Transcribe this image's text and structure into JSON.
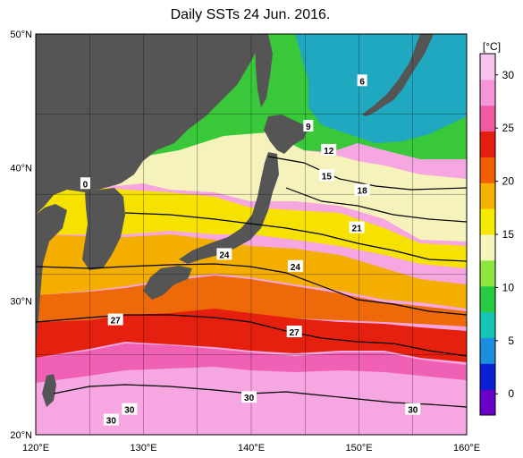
{
  "title": "Daily SSTs 24 Jun. 2016.",
  "lat_labels": [
    "50°N",
    "40°N",
    "30°N",
    "20°N"
  ],
  "lon_labels": [
    "120°E",
    "130°E",
    "140°E",
    "150°E",
    "160°E"
  ],
  "lat_range": [
    20,
    50
  ],
  "lon_range": [
    120,
    160
  ],
  "colorbar": {
    "unit": "[°C]",
    "range": [
      -2,
      32
    ],
    "ticks": [
      "30",
      "25",
      "20",
      "15",
      "10",
      "5",
      "0"
    ],
    "colors": [
      "#6a00c8",
      "#0a20d8",
      "#1c8ee0",
      "#16c4b4",
      "#28cc42",
      "#8ee640",
      "#f4f6bc",
      "#f6e800",
      "#f6b000",
      "#f06000",
      "#e61c10",
      "#f05aa0",
      "#f696d8",
      "#f8c4ee"
    ]
  },
  "contour_labels": [
    {
      "text": "6",
      "lon": 150.3,
      "lat": 46.5
    },
    {
      "text": "9",
      "lon": 145.3,
      "lat": 43.1
    },
    {
      "text": "12",
      "lon": 147.2,
      "lat": 41.3
    },
    {
      "text": "15",
      "lon": 147.0,
      "lat": 39.4
    },
    {
      "text": "18",
      "lon": 150.3,
      "lat": 38.3
    },
    {
      "text": "21",
      "lon": 149.8,
      "lat": 35.5
    },
    {
      "text": "24",
      "lon": 137.5,
      "lat": 33.5
    },
    {
      "text": "24",
      "lon": 144.1,
      "lat": 32.6
    },
    {
      "text": "27",
      "lon": 127.4,
      "lat": 28.6
    },
    {
      "text": "27",
      "lon": 144.0,
      "lat": 27.7
    },
    {
      "text": "30",
      "lon": 139.8,
      "lat": 22.8
    },
    {
      "text": "30",
      "lon": 128.7,
      "lat": 21.9
    },
    {
      "text": "30",
      "lon": 127.0,
      "lat": 21.1
    },
    {
      "text": "30",
      "lon": 155.0,
      "lat": 21.9
    },
    {
      "text": "0",
      "lon": 124.6,
      "lat": 38.8
    }
  ]
}
